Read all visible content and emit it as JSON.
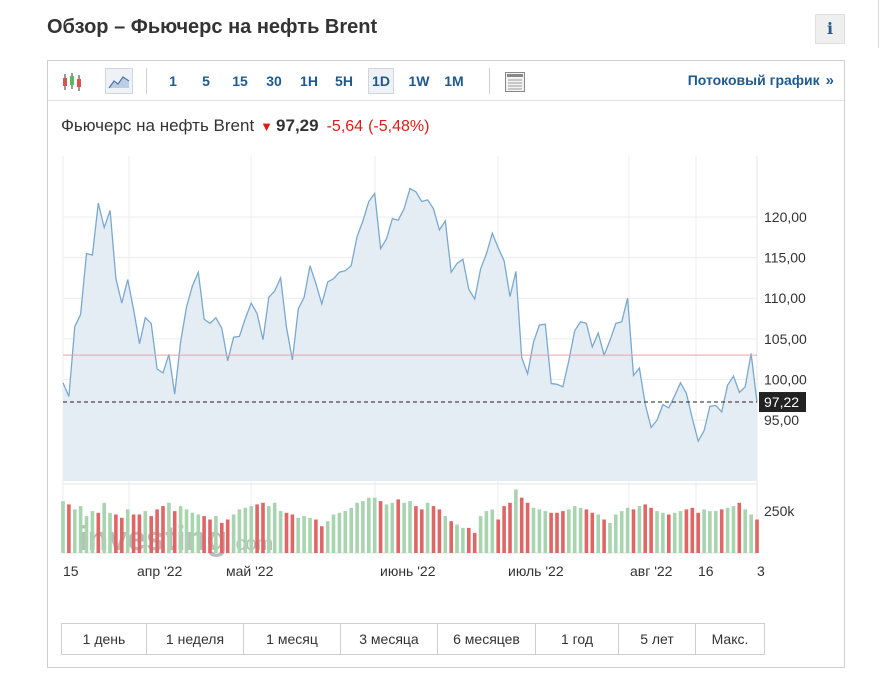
{
  "page": {
    "title": "Обзор – Фьючерс на нефть Brent",
    "info_label": "i"
  },
  "toolbar": {
    "chart_type_icons": [
      {
        "name": "candlestick-icon",
        "active": false
      },
      {
        "name": "area-chart-icon",
        "active": true
      }
    ],
    "timeframes": [
      "1",
      "5",
      "15",
      "30",
      "1H",
      "5H",
      "1D",
      "1W",
      "1M"
    ],
    "active_timeframe": "1D",
    "layout_icon": "chart-layout-icon",
    "stream_label": "Потоковый график",
    "stream_chevron": "»"
  },
  "quote": {
    "name": "Фьючерс на нефть Brent",
    "direction_arrow": "🡇",
    "price": "97,29",
    "change": "-5,64",
    "change_pct": "(-5,48%)"
  },
  "watermark": {
    "brand": "investing",
    "suffix": ".com"
  },
  "colors": {
    "line": "#7aa9cf",
    "area": "#e4ecf4",
    "ref_line": "#e7a5a5",
    "vol_up": "#a8d4b0",
    "vol_down": "#e06666",
    "down": "#d91e18",
    "link": "#1e5a8f"
  },
  "chart_data": {
    "type": "area",
    "y_ticks": [
      "120,00",
      "115,00",
      "110,00",
      "105,00",
      "100,00",
      "95,00"
    ],
    "y_tick_values": [
      120,
      115,
      110,
      105,
      100,
      95
    ],
    "ylim": [
      87.5,
      127.5
    ],
    "last_value_label": "97,22",
    "last_value": 97.22,
    "reference_line": 103.0,
    "x_tick_labels": [
      "15",
      "апр '22",
      "май '22",
      "июнь '22",
      "июль '22",
      "авг '22",
      "16",
      "3"
    ],
    "volume_tick": "250k",
    "series": [
      {
        "values": [
          99.6,
          97.9,
          106.5,
          108.0,
          115.5,
          115.3,
          121.7,
          118.7,
          120.8,
          112.4,
          109.4,
          112.3,
          108.6,
          104.4,
          107.6,
          106.9,
          101.3,
          100.8,
          103.1,
          98.2,
          104.6,
          108.9,
          111.5,
          113.2,
          107.4,
          106.9,
          107.6,
          106.3,
          102.3,
          105.2,
          105.3,
          107.5,
          109.4,
          108.1,
          104.9,
          110.1,
          110.9,
          112.5,
          106.4,
          102.4,
          108.7,
          110.1,
          114.0,
          111.8,
          109.3,
          112.0,
          112.4,
          113.2,
          113.4,
          114.0,
          117.6,
          119.5,
          121.9,
          122.9,
          116.1,
          117.3,
          119.8,
          119.6,
          121.0,
          123.5,
          123.1,
          121.9,
          122.1,
          121.0,
          118.4,
          119.5,
          113.2,
          114.3,
          114.8,
          111.1,
          109.9,
          113.6,
          115.5,
          118.0,
          116.2,
          114.6,
          110.2,
          113.3,
          102.7,
          100.7,
          104.6,
          106.7,
          106.8,
          99.5,
          99.4,
          99.1,
          102.3,
          106.0,
          107.1,
          106.9,
          104.0,
          105.7,
          103.0,
          104.8,
          106.9,
          107.1,
          110.0,
          100.5,
          101.4,
          96.9,
          94.1,
          95.0,
          96.9,
          96.5,
          98.0,
          99.6,
          98.3,
          95.2,
          92.4,
          93.7,
          96.7,
          96.8,
          96.0,
          99.3,
          100.4,
          98.4,
          99.1,
          103.2,
          97.2
        ]
      }
    ],
    "volume": {
      "values": [
        310,
        290,
        260,
        280,
        220,
        250,
        240,
        300,
        240,
        230,
        210,
        260,
        230,
        230,
        250,
        220,
        260,
        280,
        300,
        250,
        280,
        260,
        240,
        230,
        220,
        200,
        220,
        180,
        200,
        230,
        260,
        270,
        280,
        290,
        300,
        280,
        300,
        250,
        240,
        230,
        210,
        220,
        210,
        200,
        160,
        190,
        230,
        240,
        250,
        270,
        300,
        310,
        330,
        330,
        310,
        290,
        300,
        320,
        300,
        310,
        280,
        260,
        300,
        280,
        260,
        220,
        190,
        170,
        150,
        150,
        120,
        220,
        250,
        260,
        200,
        280,
        300,
        380,
        330,
        300,
        270,
        260,
        250,
        240,
        240,
        250,
        260,
        280,
        270,
        260,
        240,
        230,
        200,
        180,
        230,
        250,
        270,
        260,
        280,
        290,
        270,
        250,
        240,
        230,
        240,
        250,
        260,
        270,
        240,
        260,
        250,
        250,
        260,
        270,
        280,
        300,
        260,
        230,
        200
      ],
      "down": [
        0,
        1,
        0,
        0,
        0,
        0,
        1,
        0,
        0,
        1,
        1,
        0,
        1,
        1,
        0,
        1,
        1,
        1,
        0,
        1,
        0,
        0,
        0,
        0,
        1,
        1,
        0,
        1,
        1,
        0,
        0,
        0,
        0,
        1,
        1,
        0,
        0,
        0,
        1,
        1,
        0,
        0,
        0,
        1,
        1,
        0,
        0,
        0,
        0,
        0,
        0,
        0,
        0,
        0,
        1,
        0,
        0,
        1,
        0,
        0,
        1,
        1,
        0,
        1,
        1,
        0,
        1,
        0,
        0,
        1,
        1,
        0,
        0,
        0,
        1,
        1,
        1,
        0,
        1,
        1,
        0,
        0,
        0,
        1,
        1,
        1,
        0,
        0,
        0,
        1,
        1,
        0,
        1,
        0,
        0,
        0,
        0,
        1,
        0,
        1,
        1,
        0,
        0,
        1,
        0,
        0,
        1,
        1,
        1,
        0,
        0,
        0,
        1,
        0,
        0,
        1,
        0,
        0,
        1
      ]
    }
  },
  "ranges": [
    "1 день",
    "1 неделя",
    "1 месяц",
    "3 месяца",
    "6 месяцев",
    "1 год",
    "5 лет",
    "Макс."
  ]
}
